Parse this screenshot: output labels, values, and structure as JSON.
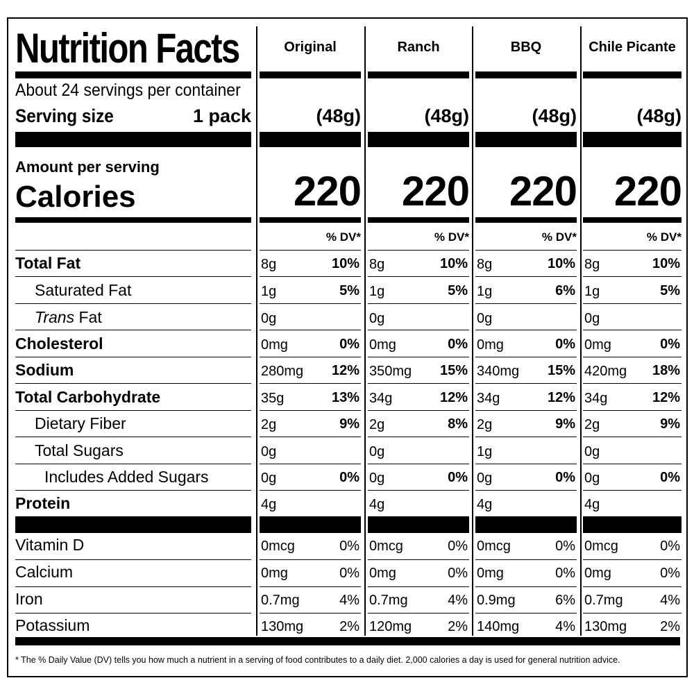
{
  "title": "Nutrition Facts",
  "servings_per_container": "About 24 servings per container",
  "serving_size_label": "Serving size",
  "serving_size_value": "1 pack",
  "amount_per_serving": "Amount per serving",
  "calories_label": "Calories",
  "dv_header": "% DV*",
  "columns": [
    {
      "name": "Original",
      "size": "(48g)",
      "calories": "220"
    },
    {
      "name": "Ranch",
      "size": "(48g)",
      "calories": "220"
    },
    {
      "name": "BBQ",
      "size": "(48g)",
      "calories": "220"
    },
    {
      "name": "Chile Picante",
      "size": "(48g)",
      "calories": "220"
    }
  ],
  "nutrients": [
    {
      "label": "Total Fat",
      "bold": true,
      "indent": 0,
      "values": [
        [
          "8g",
          "10%"
        ],
        [
          "8g",
          "10%"
        ],
        [
          "8g",
          "10%"
        ],
        [
          "8g",
          "10%"
        ]
      ]
    },
    {
      "label": "Saturated Fat",
      "bold": false,
      "indent": 1,
      "values": [
        [
          "1g",
          "5%"
        ],
        [
          "1g",
          "5%"
        ],
        [
          "1g",
          "6%"
        ],
        [
          "1g",
          "5%"
        ]
      ]
    },
    {
      "label_italic": "Trans",
      "label": " Fat",
      "bold": false,
      "indent": 1,
      "values": [
        [
          "0g",
          ""
        ],
        [
          "0g",
          ""
        ],
        [
          "0g",
          ""
        ],
        [
          "0g",
          ""
        ]
      ]
    },
    {
      "label": "Cholesterol",
      "bold": true,
      "indent": 0,
      "values": [
        [
          "0mg",
          "0%"
        ],
        [
          "0mg",
          "0%"
        ],
        [
          "0mg",
          "0%"
        ],
        [
          "0mg",
          "0%"
        ]
      ]
    },
    {
      "label": "Sodium",
      "bold": true,
      "indent": 0,
      "values": [
        [
          "280mg",
          "12%"
        ],
        [
          "350mg",
          "15%"
        ],
        [
          "340mg",
          "15%"
        ],
        [
          "420mg",
          "18%"
        ]
      ]
    },
    {
      "label": "Total Carbohydrate",
      "bold": true,
      "indent": 0,
      "values": [
        [
          "35g",
          "13%"
        ],
        [
          "34g",
          "12%"
        ],
        [
          "34g",
          "12%"
        ],
        [
          "34g",
          "12%"
        ]
      ]
    },
    {
      "label": "Dietary Fiber",
      "bold": false,
      "indent": 1,
      "values": [
        [
          "2g",
          "9%"
        ],
        [
          "2g",
          "8%"
        ],
        [
          "2g",
          "9%"
        ],
        [
          "2g",
          "9%"
        ]
      ]
    },
    {
      "label": "Total Sugars",
      "bold": false,
      "indent": 1,
      "values": [
        [
          "0g",
          ""
        ],
        [
          "0g",
          ""
        ],
        [
          "1g",
          ""
        ],
        [
          "0g",
          ""
        ]
      ]
    },
    {
      "label": "Includes Added Sugars",
      "bold": false,
      "indent": 2,
      "values": [
        [
          "0g",
          "0%"
        ],
        [
          "0g",
          "0%"
        ],
        [
          "0g",
          "0%"
        ],
        [
          "0g",
          "0%"
        ]
      ]
    },
    {
      "label": "Protein",
      "bold": true,
      "indent": 0,
      "values": [
        [
          "4g",
          ""
        ],
        [
          "4g",
          ""
        ],
        [
          "4g",
          ""
        ],
        [
          "4g",
          ""
        ]
      ]
    }
  ],
  "vitamins": [
    {
      "label": "Vitamin D",
      "values": [
        [
          "0mcg",
          "0%"
        ],
        [
          "0mcg",
          "0%"
        ],
        [
          "0mcg",
          "0%"
        ],
        [
          "0mcg",
          "0%"
        ]
      ]
    },
    {
      "label": "Calcium",
      "values": [
        [
          "0mg",
          "0%"
        ],
        [
          "0mg",
          "0%"
        ],
        [
          "0mg",
          "0%"
        ],
        [
          "0mg",
          "0%"
        ]
      ]
    },
    {
      "label": "Iron",
      "values": [
        [
          "0.7mg",
          "4%"
        ],
        [
          "0.7mg",
          "4%"
        ],
        [
          "0.9mg",
          "6%"
        ],
        [
          "0.7mg",
          "4%"
        ]
      ]
    },
    {
      "label": "Potassium",
      "values": [
        [
          "130mg",
          "2%"
        ],
        [
          "120mg",
          "2%"
        ],
        [
          "140mg",
          "4%"
        ],
        [
          "130mg",
          "2%"
        ]
      ]
    }
  ],
  "footnote": "* The % Daily Value (DV) tells you how much a nutrient in a serving of food contributes to a daily diet. 2,000 calories a day is used for general nutrition advice."
}
